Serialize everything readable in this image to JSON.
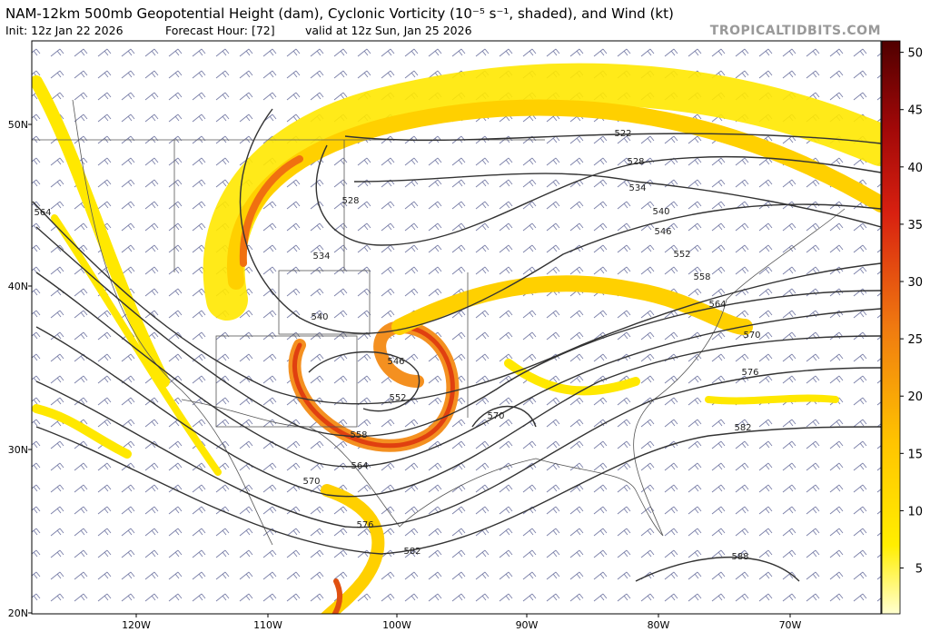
{
  "header": {
    "title": "NAM-12km 500mb Geopotential Height (dam), Cyclonic Vorticity (10⁻⁵ s⁻¹, shaded), and Wind (kt)",
    "init": "Init: 12z Jan 22 2026",
    "forecast_hour": "Forecast Hour: [72]",
    "valid": "valid at 12z Sun, Jan 25 2026",
    "watermark": "TROPICALTIDBITS.COM"
  },
  "map": {
    "lat_labels": [
      "50N",
      "40N",
      "30N",
      "20N"
    ],
    "lon_labels": [
      "120W",
      "110W",
      "100W",
      "90W",
      "80W",
      "70W"
    ],
    "contour_labels": [
      "564",
      "522",
      "528",
      "534",
      "540",
      "546",
      "552",
      "558",
      "564",
      "570",
      "576",
      "582",
      "588",
      "528",
      "534",
      "540",
      "546",
      "552",
      "558",
      "564",
      "570",
      "576",
      "582",
      "570"
    ]
  },
  "colorbar": {
    "range": [
      1,
      51
    ],
    "ticks": [
      5,
      10,
      15,
      20,
      25,
      30,
      35,
      40,
      45,
      50
    ]
  }
}
